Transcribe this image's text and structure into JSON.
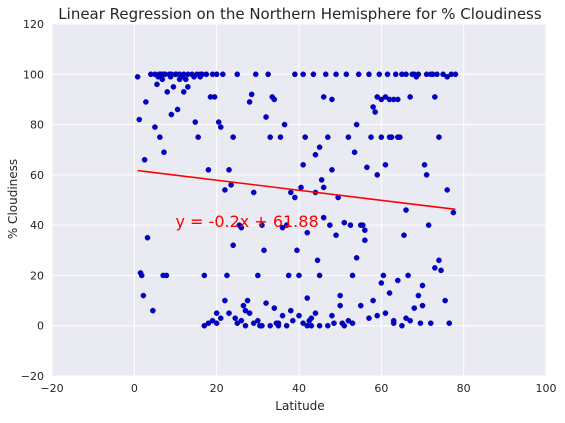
{
  "colors": {
    "background": "#ffffff",
    "plot_background": "#eaeaf2",
    "grid": "#ffffff",
    "points": "#0000cc",
    "points_edge": "#000080",
    "regression_line": "#ff0000",
    "text": "#262626",
    "annotation": "#ff0000"
  },
  "chart_data": {
    "type": "scatter",
    "title": "Linear Regression on the Northern Hemisphere for % Cloudiness",
    "xlabel": "Latitude",
    "ylabel": "% Cloudiness",
    "xlim": [
      -20,
      100
    ],
    "ylim": [
      -20,
      120
    ],
    "xticks": [
      "−20",
      "0",
      "20",
      "40",
      "60",
      "80",
      "100"
    ],
    "xtick_values": [
      -20,
      0,
      20,
      40,
      60,
      80,
      100
    ],
    "yticks": [
      "−20",
      "0",
      "20",
      "40",
      "60",
      "80",
      "100",
      "120"
    ],
    "ytick_values": [
      -20,
      0,
      20,
      40,
      60,
      80,
      100,
      120
    ],
    "grid": true,
    "annotation": {
      "text": "y = -0.2x + 61.88",
      "x": 10,
      "y": 40
    },
    "regression": {
      "slope": -0.2,
      "intercept": 61.88,
      "x_range": [
        0.8,
        78
      ]
    },
    "points": [
      [
        0.8,
        99
      ],
      [
        1.2,
        82
      ],
      [
        1.5,
        21
      ],
      [
        1.8,
        20
      ],
      [
        2.2,
        12
      ],
      [
        2.5,
        66
      ],
      [
        2.8,
        89
      ],
      [
        3.2,
        35
      ],
      [
        4.5,
        6
      ],
      [
        5,
        100
      ],
      [
        5,
        79
      ],
      [
        5.5,
        96
      ],
      [
        5.8,
        99
      ],
      [
        6,
        100
      ],
      [
        6.2,
        75
      ],
      [
        6.5,
        100
      ],
      [
        6.8,
        98
      ],
      [
        7,
        20
      ],
      [
        7.2,
        69
      ],
      [
        7.5,
        100
      ],
      [
        7.8,
        20
      ],
      [
        8,
        93
      ],
      [
        8.5,
        100
      ],
      [
        8.8,
        99
      ],
      [
        9,
        84
      ],
      [
        9.5,
        95
      ],
      [
        10,
        100
      ],
      [
        10.2,
        100
      ],
      [
        10.5,
        86
      ],
      [
        11,
        100
      ],
      [
        11.5,
        99
      ],
      [
        12,
        93
      ],
      [
        12.5,
        98
      ],
      [
        13,
        95
      ],
      [
        14,
        100
      ],
      [
        14.5,
        99
      ],
      [
        14.8,
        81
      ],
      [
        15.2,
        100
      ],
      [
        15.5,
        75
      ],
      [
        16,
        100
      ],
      [
        16.5,
        100
      ],
      [
        17,
        20
      ],
      [
        17.5,
        100
      ],
      [
        18,
        62
      ],
      [
        18.5,
        91
      ],
      [
        19,
        100
      ],
      [
        19.5,
        91
      ],
      [
        20,
        100
      ],
      [
        20.5,
        81
      ],
      [
        21,
        79
      ],
      [
        21.5,
        100
      ],
      [
        22,
        54
      ],
      [
        22.5,
        20
      ],
      [
        23,
        62
      ],
      [
        23.5,
        56
      ],
      [
        24,
        75
      ],
      [
        24.5,
        3
      ],
      [
        25,
        100
      ],
      [
        25.5,
        40
      ],
      [
        26,
        39
      ],
      [
        26.5,
        8
      ],
      [
        27,
        6
      ],
      [
        27.5,
        10
      ],
      [
        28,
        89
      ],
      [
        28.5,
        92
      ],
      [
        29,
        53
      ],
      [
        29.5,
        100
      ],
      [
        30,
        20
      ],
      [
        30.5,
        0
      ],
      [
        31,
        40
      ],
      [
        31.5,
        30
      ],
      [
        32,
        83
      ],
      [
        32.5,
        100
      ],
      [
        33,
        75
      ],
      [
        33.5,
        91
      ],
      [
        34,
        90
      ],
      [
        34.5,
        1
      ],
      [
        35,
        0
      ],
      [
        35.5,
        75
      ],
      [
        36,
        39
      ],
      [
        36.5,
        80
      ],
      [
        37,
        0
      ],
      [
        37.5,
        20
      ],
      [
        38,
        53
      ],
      [
        38.5,
        2
      ],
      [
        39,
        100
      ],
      [
        39.5,
        30
      ],
      [
        40,
        20
      ],
      [
        40.5,
        55
      ],
      [
        41,
        100
      ],
      [
        41.5,
        75
      ],
      [
        42,
        0
      ],
      [
        42.5,
        2
      ],
      [
        43,
        3
      ],
      [
        43.5,
        100
      ],
      [
        44,
        53
      ],
      [
        44.5,
        26
      ],
      [
        45,
        0
      ],
      [
        45.5,
        58
      ],
      [
        46,
        55
      ],
      [
        46.5,
        100
      ],
      [
        47,
        75
      ],
      [
        47.5,
        40
      ],
      [
        48,
        62
      ],
      [
        48.5,
        1
      ],
      [
        49,
        100
      ],
      [
        49.5,
        51
      ],
      [
        50,
        8
      ],
      [
        50.5,
        1
      ],
      [
        51,
        41
      ],
      [
        51.5,
        100
      ],
      [
        52,
        75
      ],
      [
        52.5,
        40
      ],
      [
        53,
        20
      ],
      [
        53.5,
        69
      ],
      [
        54,
        80
      ],
      [
        54.5,
        100
      ],
      [
        55,
        40
      ],
      [
        55.5,
        40
      ],
      [
        56,
        38
      ],
      [
        56.5,
        63
      ],
      [
        57,
        100
      ],
      [
        57.5,
        75
      ],
      [
        58,
        87
      ],
      [
        58.5,
        85
      ],
      [
        59,
        91
      ],
      [
        59.5,
        100
      ],
      [
        60,
        90
      ],
      [
        60.5,
        20
      ],
      [
        61,
        5
      ],
      [
        61.5,
        100
      ],
      [
        62,
        75
      ],
      [
        62.5,
        75
      ],
      [
        63,
        2
      ],
      [
        63.5,
        100
      ],
      [
        64,
        75
      ],
      [
        64.5,
        75
      ],
      [
        65,
        100
      ],
      [
        65.5,
        36
      ],
      [
        66,
        46
      ],
      [
        66.5,
        20
      ],
      [
        67,
        2
      ],
      [
        67.5,
        100
      ],
      [
        68,
        100
      ],
      [
        68.5,
        99
      ],
      [
        69,
        12
      ],
      [
        69.5,
        1
      ],
      [
        70,
        8
      ],
      [
        70.5,
        64
      ],
      [
        71,
        60
      ],
      [
        71.5,
        40
      ],
      [
        72,
        1
      ],
      [
        72.5,
        100
      ],
      [
        73,
        23
      ],
      [
        73.5,
        100
      ],
      [
        74,
        26
      ],
      [
        74.5,
        22
      ],
      [
        75,
        100
      ],
      [
        75.5,
        10
      ],
      [
        76,
        54
      ],
      [
        76.5,
        1
      ],
      [
        77,
        100
      ],
      [
        77.5,
        45
      ],
      [
        78,
        100
      ],
      [
        40,
        4
      ],
      [
        42,
        11
      ],
      [
        45,
        20
      ],
      [
        50,
        12
      ],
      [
        55,
        8
      ],
      [
        62,
        13
      ],
      [
        66,
        3
      ],
      [
        68,
        7
      ],
      [
        70,
        16
      ],
      [
        35,
        1
      ],
      [
        30,
        2
      ],
      [
        25,
        1
      ],
      [
        32,
        9
      ],
      [
        38,
        6
      ],
      [
        44,
        5
      ],
      [
        48,
        4
      ],
      [
        52,
        2
      ],
      [
        58,
        10
      ],
      [
        60,
        17
      ],
      [
        64,
        18
      ],
      [
        41,
        1
      ],
      [
        43,
        0
      ],
      [
        47,
        0
      ],
      [
        51,
        0
      ],
      [
        53,
        1
      ],
      [
        57,
        3
      ],
      [
        59,
        4
      ],
      [
        63,
        1
      ],
      [
        65,
        0
      ],
      [
        36,
        4
      ],
      [
        31,
        0
      ],
      [
        29,
        1
      ],
      [
        27,
        0
      ],
      [
        33,
        0
      ],
      [
        21,
        3
      ],
      [
        22,
        10
      ],
      [
        20,
        1
      ],
      [
        23,
        5
      ],
      [
        19,
        2
      ],
      [
        26,
        2
      ],
      [
        28,
        5
      ],
      [
        34,
        7
      ],
      [
        37,
        40
      ],
      [
        39,
        51
      ],
      [
        42,
        37
      ],
      [
        46,
        43
      ],
      [
        49,
        36
      ],
      [
        54,
        27
      ],
      [
        56,
        34
      ],
      [
        60,
        75
      ],
      [
        61,
        91
      ],
      [
        62,
        90
      ],
      [
        64,
        90
      ],
      [
        66,
        100
      ],
      [
        67,
        91
      ],
      [
        69,
        100
      ],
      [
        71,
        100
      ],
      [
        72,
        100
      ],
      [
        73,
        91
      ],
      [
        74,
        75
      ],
      [
        76,
        99
      ],
      [
        20,
        5
      ],
      [
        24,
        32
      ],
      [
        46,
        91
      ],
      [
        48,
        90
      ],
      [
        59,
        60
      ],
      [
        61,
        64
      ],
      [
        63,
        90
      ],
      [
        44,
        68
      ],
      [
        45,
        71
      ],
      [
        41,
        64
      ],
      [
        17,
        0
      ],
      [
        18,
        1
      ],
      [
        12,
        100
      ],
      [
        4,
        100
      ],
      [
        7,
        100
      ],
      [
        9,
        100
      ],
      [
        11,
        98
      ],
      [
        13,
        100
      ],
      [
        16,
        99
      ]
    ]
  }
}
